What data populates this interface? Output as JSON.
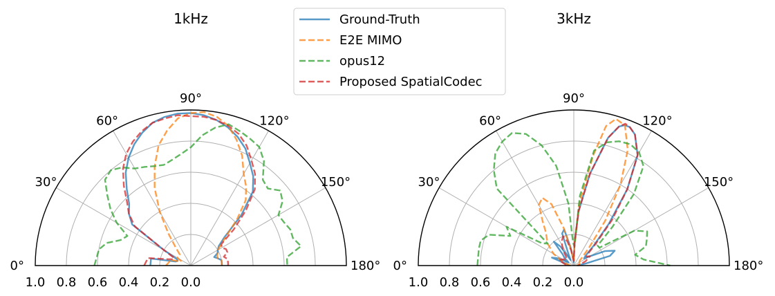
{
  "legend": {
    "placement": "upper-center",
    "entries": [
      {
        "name": "Ground-Truth",
        "color": "#1f77b4",
        "linestyle": "solid"
      },
      {
        "name": "E2E MIMO",
        "color": "#ff7f0e",
        "linestyle": "dashed"
      },
      {
        "name": "opus12",
        "color": "#2ca02c",
        "linestyle": "dashed"
      },
      {
        "name": "Proposed SpatialCodec",
        "color": "#d62728",
        "linestyle": "dashed"
      }
    ]
  },
  "chart_data": [
    {
      "type": "line",
      "projection": "polar",
      "title": "1kHz",
      "theta_range_deg": [
        0,
        180
      ],
      "r_range": [
        0,
        1.0
      ],
      "theta_ticks": [
        "0°",
        "30°",
        "60°",
        "90°",
        "120°",
        "150°",
        "180°"
      ],
      "r_ticks": [
        "1.0",
        "0.8",
        "0.6",
        "0.4",
        "0.2",
        "0.0"
      ],
      "grid": true,
      "series": [
        {
          "name": "Ground-Truth",
          "color": "#1f77b4",
          "linestyle": "solid",
          "theta": [
            0,
            10,
            15,
            20,
            25,
            30,
            35,
            40,
            45,
            50,
            55,
            60,
            65,
            70,
            75,
            80,
            85,
            90,
            95,
            100,
            105,
            110,
            115,
            120,
            125,
            130,
            135,
            140,
            145,
            150,
            155,
            160,
            165,
            170,
            175,
            180
          ],
          "r": [
            0.26,
            0.26,
            0.1,
            0.09,
            0.1,
            0.2,
            0.46,
            0.52,
            0.56,
            0.64,
            0.73,
            0.8,
            0.86,
            0.91,
            0.95,
            0.97,
            0.98,
            0.98,
            0.97,
            0.95,
            0.92,
            0.88,
            0.83,
            0.76,
            0.7,
            0.62,
            0.46,
            0.28,
            0.22,
            0.2,
            0.19,
            0.16,
            0.18,
            0.2,
            0.2,
            0.2
          ]
        },
        {
          "name": "E2E MIMO",
          "color": "#ff7f0e",
          "linestyle": "dashed",
          "theta": [
            0,
            10,
            15,
            20,
            25,
            30,
            35,
            40,
            45,
            50,
            55,
            60,
            65,
            70,
            75,
            80,
            85,
            90,
            95,
            100,
            105,
            110,
            115,
            120,
            125,
            130,
            135,
            140,
            145,
            150,
            155,
            160,
            165,
            170,
            175,
            180
          ],
          "r": [
            0.16,
            0.14,
            0.14,
            0.08,
            0.07,
            0.1,
            0.1,
            0.1,
            0.1,
            0.15,
            0.25,
            0.4,
            0.55,
            0.68,
            0.8,
            0.88,
            0.95,
            0.98,
            0.99,
            0.97,
            0.93,
            0.86,
            0.78,
            0.68,
            0.62,
            0.55,
            0.42,
            0.3,
            0.24,
            0.2,
            0.19,
            0.18,
            0.18,
            0.2,
            0.2,
            0.2
          ]
        },
        {
          "name": "opus12",
          "color": "#2ca02c",
          "linestyle": "dashed",
          "theta": [
            0,
            10,
            15,
            20,
            25,
            30,
            35,
            40,
            45,
            50,
            55,
            60,
            65,
            70,
            75,
            80,
            85,
            90,
            95,
            100,
            105,
            110,
            115,
            120,
            125,
            130,
            135,
            140,
            145,
            150,
            155,
            160,
            165,
            170,
            175,
            180
          ],
          "r": [
            0.62,
            0.6,
            0.56,
            0.48,
            0.45,
            0.55,
            0.63,
            0.7,
            0.78,
            0.8,
            0.77,
            0.72,
            0.7,
            0.68,
            0.67,
            0.69,
            0.72,
            0.76,
            0.84,
            0.9,
            0.94,
            0.92,
            0.9,
            0.88,
            0.82,
            0.72,
            0.7,
            0.75,
            0.72,
            0.65,
            0.66,
            0.68,
            0.68,
            0.72,
            0.62,
            0.62
          ]
        },
        {
          "name": "Proposed SpatialCodec",
          "color": "#d62728",
          "linestyle": "dashed",
          "theta": [
            0,
            10,
            15,
            20,
            25,
            30,
            35,
            40,
            45,
            50,
            55,
            60,
            65,
            70,
            75,
            80,
            85,
            90,
            95,
            100,
            105,
            110,
            115,
            120,
            125,
            130,
            135,
            140,
            145,
            150,
            155,
            160,
            165,
            170,
            175,
            180
          ],
          "r": [
            0.3,
            0.28,
            0.16,
            0.12,
            0.12,
            0.2,
            0.44,
            0.52,
            0.58,
            0.67,
            0.76,
            0.83,
            0.88,
            0.92,
            0.95,
            0.96,
            0.97,
            0.96,
            0.96,
            0.95,
            0.93,
            0.9,
            0.85,
            0.78,
            0.72,
            0.64,
            0.5,
            0.36,
            0.24,
            0.23,
            0.25,
            0.25,
            0.22,
            0.24,
            0.24,
            0.24
          ]
        }
      ]
    },
    {
      "type": "line",
      "projection": "polar",
      "title": "3kHz",
      "theta_range_deg": [
        0,
        180
      ],
      "r_range": [
        0,
        1.0
      ],
      "theta_ticks": [
        "0°",
        "30°",
        "60°",
        "90°",
        "120°",
        "150°",
        "180°"
      ],
      "r_ticks": [
        "1.0",
        "0.8",
        "0.6",
        "0.4",
        "0.2",
        "0.0"
      ],
      "grid": true,
      "series": [
        {
          "name": "Ground-Truth",
          "color": "#1f77b4",
          "linestyle": "solid",
          "theta": [
            0,
            10,
            20,
            25,
            30,
            35,
            40,
            45,
            50,
            55,
            60,
            65,
            70,
            75,
            80,
            85,
            88,
            92,
            95,
            100,
            105,
            108,
            110,
            112,
            115,
            120,
            125,
            130,
            135,
            140,
            145,
            150,
            155,
            160,
            165,
            170,
            180
          ],
          "r": [
            0.03,
            0.04,
            0.15,
            0.11,
            0.04,
            0.05,
            0.08,
            0.1,
            0.2,
            0.15,
            0.04,
            0.08,
            0.22,
            0.24,
            0.12,
            0.04,
            0.02,
            0.15,
            0.35,
            0.6,
            0.85,
            0.94,
            0.96,
            0.96,
            0.93,
            0.82,
            0.6,
            0.35,
            0.18,
            0.1,
            0.08,
            0.12,
            0.22,
            0.28,
            0.24,
            0.08,
            0.02
          ]
        },
        {
          "name": "E2E MIMO",
          "color": "#ff7f0e",
          "linestyle": "dashed",
          "theta": [
            0,
            10,
            20,
            30,
            40,
            50,
            55,
            60,
            65,
            70,
            75,
            80,
            85,
            88,
            92,
            95,
            100,
            103,
            106,
            110,
            115,
            120,
            125,
            130,
            135,
            140,
            150,
            160,
            170,
            180
          ],
          "r": [
            0.02,
            0.04,
            0.08,
            0.15,
            0.22,
            0.28,
            0.35,
            0.45,
            0.48,
            0.42,
            0.25,
            0.1,
            0.05,
            0.03,
            0.15,
            0.4,
            0.72,
            0.92,
            0.98,
            0.96,
            0.82,
            0.6,
            0.35,
            0.16,
            0.08,
            0.05,
            0.04,
            0.05,
            0.03,
            0.02
          ]
        },
        {
          "name": "opus12",
          "color": "#2ca02c",
          "linestyle": "dashed",
          "theta": [
            0,
            10,
            15,
            20,
            25,
            30,
            35,
            40,
            45,
            50,
            55,
            60,
            65,
            70,
            75,
            80,
            85,
            88,
            92,
            95,
            100,
            105,
            110,
            115,
            120,
            125,
            130,
            135,
            140,
            145,
            150,
            155,
            160,
            165,
            170,
            175,
            180
          ],
          "r": [
            0.62,
            0.62,
            0.62,
            0.58,
            0.45,
            0.5,
            0.25,
            0.22,
            0.7,
            0.8,
            0.88,
            0.92,
            0.94,
            0.9,
            0.8,
            0.65,
            0.4,
            0.15,
            0.12,
            0.45,
            0.75,
            0.82,
            0.85,
            0.86,
            0.84,
            0.78,
            0.6,
            0.35,
            0.2,
            0.2,
            0.45,
            0.52,
            0.5,
            0.48,
            0.4,
            0.45,
            0.62
          ]
        },
        {
          "name": "Proposed SpatialCodec",
          "color": "#d62728",
          "linestyle": "dashed",
          "theta": [
            0,
            10,
            20,
            30,
            40,
            50,
            55,
            60,
            65,
            70,
            75,
            80,
            85,
            88,
            92,
            95,
            100,
            105,
            108,
            110,
            112,
            115,
            120,
            125,
            130,
            135,
            140,
            145,
            150,
            160,
            170,
            180
          ],
          "r": [
            0.05,
            0.06,
            0.1,
            0.08,
            0.06,
            0.08,
            0.12,
            0.15,
            0.18,
            0.2,
            0.16,
            0.1,
            0.05,
            0.03,
            0.15,
            0.35,
            0.6,
            0.85,
            0.94,
            0.97,
            0.96,
            0.93,
            0.82,
            0.6,
            0.38,
            0.2,
            0.12,
            0.1,
            0.12,
            0.08,
            0.04,
            0.03
          ]
        }
      ]
    }
  ]
}
